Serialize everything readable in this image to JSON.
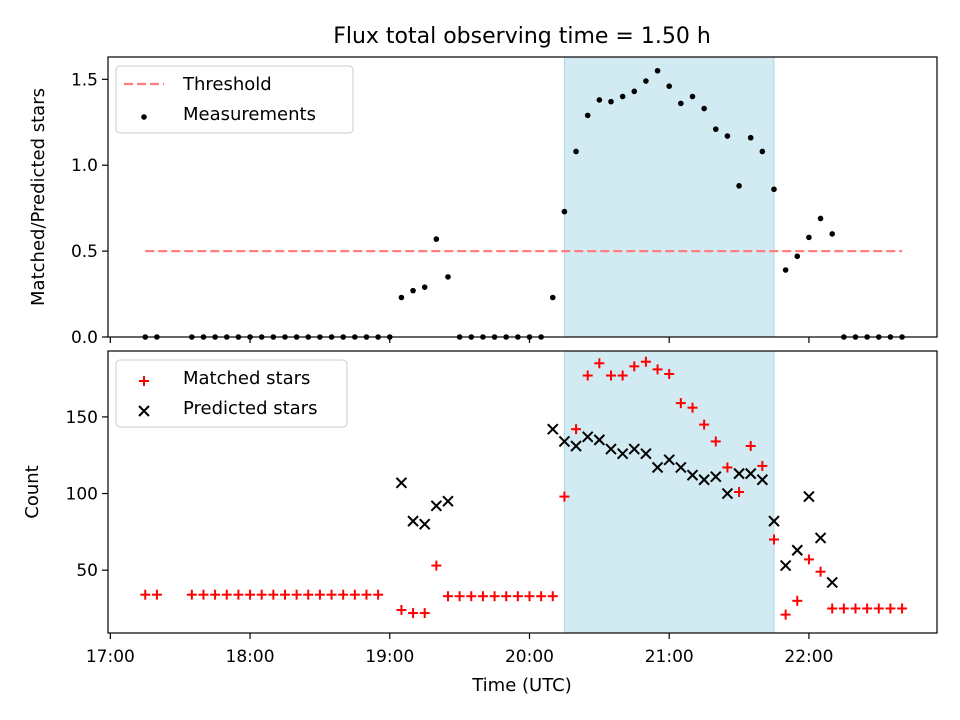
{
  "chart_data": [
    {
      "type": "scatter",
      "title": "Flux total observing time = 1.50 h",
      "xlabel": "",
      "ylabel": "Matched/Predicted stars",
      "xlim": [
        "16:59",
        "22:55"
      ],
      "ylim": [
        0,
        1.63
      ],
      "yticks": [
        0.0,
        0.5,
        1.0,
        1.5
      ],
      "ytick_labels": [
        "0.0",
        "0.5",
        "1.0",
        "1.5"
      ],
      "xticks": [
        "17:00",
        "18:00",
        "19:00",
        "20:00",
        "21:00",
        "22:00"
      ],
      "shaded_interval": [
        "20:15",
        "21:45"
      ],
      "threshold": {
        "value": 0.5,
        "x_range": [
          "17:15",
          "22:40"
        ]
      },
      "legend": {
        "position": "top-left",
        "entries": [
          "Threshold",
          "Measurements"
        ]
      },
      "series": [
        {
          "name": "Measurements",
          "points": [
            [
              "17:15",
              0
            ],
            [
              "17:20",
              0
            ],
            [
              "17:35",
              0
            ],
            [
              "17:40",
              0
            ],
            [
              "17:45",
              0
            ],
            [
              "17:50",
              0
            ],
            [
              "17:55",
              0
            ],
            [
              "18:00",
              0
            ],
            [
              "18:05",
              0
            ],
            [
              "18:10",
              0
            ],
            [
              "18:15",
              0
            ],
            [
              "18:20",
              0
            ],
            [
              "18:25",
              0
            ],
            [
              "18:30",
              0
            ],
            [
              "18:35",
              0
            ],
            [
              "18:40",
              0
            ],
            [
              "18:45",
              0
            ],
            [
              "18:50",
              0
            ],
            [
              "18:55",
              0
            ],
            [
              "19:00",
              0
            ],
            [
              "19:05",
              0.23
            ],
            [
              "19:10",
              0.27
            ],
            [
              "19:15",
              0.29
            ],
            [
              "19:20",
              0.57
            ],
            [
              "19:25",
              0.35
            ],
            [
              "19:30",
              0
            ],
            [
              "19:35",
              0
            ],
            [
              "19:40",
              0
            ],
            [
              "19:45",
              0
            ],
            [
              "19:50",
              0
            ],
            [
              "19:55",
              0
            ],
            [
              "20:00",
              0
            ],
            [
              "20:05",
              0
            ],
            [
              "20:10",
              0.23
            ],
            [
              "20:15",
              0.73
            ],
            [
              "20:20",
              1.08
            ],
            [
              "20:25",
              1.29
            ],
            [
              "20:30",
              1.38
            ],
            [
              "20:35",
              1.37
            ],
            [
              "20:40",
              1.4
            ],
            [
              "20:45",
              1.43
            ],
            [
              "20:50",
              1.49
            ],
            [
              "20:55",
              1.55
            ],
            [
              "21:00",
              1.46
            ],
            [
              "21:05",
              1.36
            ],
            [
              "21:10",
              1.4
            ],
            [
              "21:15",
              1.33
            ],
            [
              "21:20",
              1.21
            ],
            [
              "21:25",
              1.17
            ],
            [
              "21:30",
              0.88
            ],
            [
              "21:35",
              1.16
            ],
            [
              "21:40",
              1.08
            ],
            [
              "21:45",
              0.86
            ],
            [
              "21:50",
              0.39
            ],
            [
              "21:55",
              0.47
            ],
            [
              "22:00",
              0.58
            ],
            [
              "22:05",
              0.69
            ],
            [
              "22:10",
              0.6
            ],
            [
              "22:15",
              0
            ],
            [
              "22:20",
              0
            ],
            [
              "22:25",
              0
            ],
            [
              "22:30",
              0
            ],
            [
              "22:35",
              0
            ],
            [
              "22:40",
              0
            ]
          ]
        }
      ]
    },
    {
      "type": "scatter",
      "title": "",
      "xlabel": "Time (UTC)",
      "ylabel": "Count",
      "xlim": [
        "16:59",
        "22:55"
      ],
      "ylim": [
        9,
        193
      ],
      "yticks": [
        50,
        100,
        150
      ],
      "ytick_labels": [
        "50",
        "100",
        "150"
      ],
      "xticks": [
        "17:00",
        "18:00",
        "19:00",
        "20:00",
        "21:00",
        "22:00"
      ],
      "xtick_labels": [
        "17:00",
        "18:00",
        "19:00",
        "20:00",
        "21:00",
        "22:00"
      ],
      "shaded_interval": [
        "20:15",
        "21:45"
      ],
      "legend": {
        "position": "top-left",
        "entries": [
          "Matched stars",
          "Predicted stars"
        ]
      },
      "series": [
        {
          "name": "Matched stars",
          "marker": "plus",
          "points": [
            [
              "17:15",
              34
            ],
            [
              "17:20",
              34
            ],
            [
              "17:35",
              34
            ],
            [
              "17:40",
              34
            ],
            [
              "17:45",
              34
            ],
            [
              "17:50",
              34
            ],
            [
              "17:55",
              34
            ],
            [
              "18:00",
              34
            ],
            [
              "18:05",
              34
            ],
            [
              "18:10",
              34
            ],
            [
              "18:15",
              34
            ],
            [
              "18:20",
              34
            ],
            [
              "18:25",
              34
            ],
            [
              "18:30",
              34
            ],
            [
              "18:35",
              34
            ],
            [
              "18:40",
              34
            ],
            [
              "18:45",
              34
            ],
            [
              "18:50",
              34
            ],
            [
              "18:55",
              34
            ],
            [
              "19:05",
              24
            ],
            [
              "19:10",
              22
            ],
            [
              "19:15",
              22
            ],
            [
              "19:20",
              53
            ],
            [
              "19:25",
              33
            ],
            [
              "19:30",
              33
            ],
            [
              "19:35",
              33
            ],
            [
              "19:40",
              33
            ],
            [
              "19:45",
              33
            ],
            [
              "19:50",
              33
            ],
            [
              "19:55",
              33
            ],
            [
              "20:00",
              33
            ],
            [
              "20:05",
              33
            ],
            [
              "20:10",
              33
            ],
            [
              "20:15",
              98
            ],
            [
              "20:20",
              142
            ],
            [
              "20:25",
              177
            ],
            [
              "20:30",
              185
            ],
            [
              "20:35",
              177
            ],
            [
              "20:40",
              177
            ],
            [
              "20:45",
              183
            ],
            [
              "20:50",
              186
            ],
            [
              "20:55",
              181
            ],
            [
              "21:00",
              178
            ],
            [
              "21:05",
              159
            ],
            [
              "21:10",
              156
            ],
            [
              "21:15",
              145
            ],
            [
              "21:20",
              134
            ],
            [
              "21:25",
              117
            ],
            [
              "21:30",
              101
            ],
            [
              "21:35",
              131
            ],
            [
              "21:40",
              118
            ],
            [
              "21:45",
              70
            ],
            [
              "21:50",
              21
            ],
            [
              "21:55",
              30
            ],
            [
              "22:00",
              57
            ],
            [
              "22:05",
              49
            ],
            [
              "22:10",
              25
            ],
            [
              "22:15",
              25
            ],
            [
              "22:20",
              25
            ],
            [
              "22:25",
              25
            ],
            [
              "22:30",
              25
            ],
            [
              "22:35",
              25
            ],
            [
              "22:40",
              25
            ]
          ]
        },
        {
          "name": "Predicted stars",
          "marker": "x",
          "points": [
            [
              "19:05",
              107
            ],
            [
              "19:10",
              82
            ],
            [
              "19:15",
              80
            ],
            [
              "19:20",
              92
            ],
            [
              "19:25",
              95
            ],
            [
              "20:10",
              142
            ],
            [
              "20:15",
              134
            ],
            [
              "20:20",
              131
            ],
            [
              "20:25",
              137
            ],
            [
              "20:30",
              135
            ],
            [
              "20:35",
              129
            ],
            [
              "20:40",
              126
            ],
            [
              "20:45",
              129
            ],
            [
              "20:50",
              126
            ],
            [
              "20:55",
              117
            ],
            [
              "21:00",
              122
            ],
            [
              "21:05",
              117
            ],
            [
              "21:10",
              112
            ],
            [
              "21:15",
              109
            ],
            [
              "21:20",
              111
            ],
            [
              "21:25",
              100
            ],
            [
              "21:30",
              113
            ],
            [
              "21:35",
              113
            ],
            [
              "21:40",
              109
            ],
            [
              "21:45",
              82
            ],
            [
              "21:50",
              53
            ],
            [
              "21:55",
              63
            ],
            [
              "22:00",
              98
            ],
            [
              "22:05",
              71
            ],
            [
              "22:10",
              42
            ]
          ]
        }
      ]
    }
  ],
  "colors": {
    "shade": "#add8e6",
    "threshold": "#ff7f7f",
    "measurements": "#000000",
    "matched": "#ff0000",
    "predicted": "#000000"
  }
}
